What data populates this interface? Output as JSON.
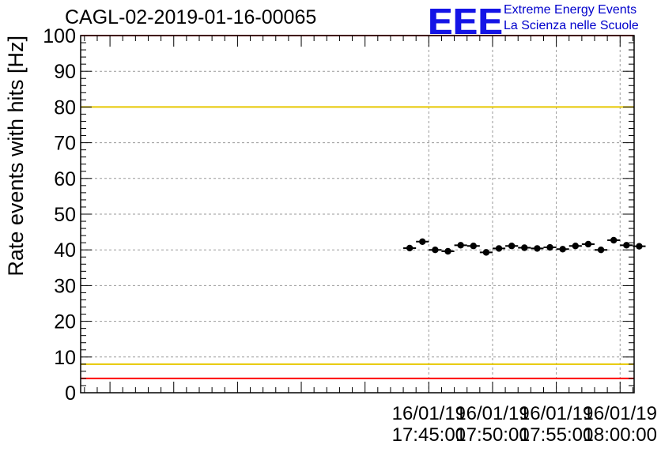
{
  "title": "CAGL-02-2019-01-16-00065",
  "logo": {
    "mark": "EEE",
    "line1": "Extreme Energy Events",
    "line2": "La Scienza nelle Scuole"
  },
  "chart_data": {
    "type": "scatter",
    "ylabel": "Rate events with hits [Hz]",
    "xlabel": "",
    "ylim": [
      0,
      100
    ],
    "yticks": [
      0,
      10,
      20,
      30,
      40,
      50,
      60,
      70,
      80,
      90,
      100
    ],
    "xlim_minutes": [
      17.7,
      61.1
    ],
    "x_ticks": [
      {
        "date": "16/01/19",
        "time": "17:45:00",
        "minute": 45
      },
      {
        "date": "16/01/19",
        "time": "17:50:00",
        "minute": 50
      },
      {
        "date": "16/01/19",
        "time": "17:55:00",
        "minute": 55
      },
      {
        "date": "16/01/19",
        "time": "18:00:00",
        "minute": 60
      }
    ],
    "grid": true,
    "bin_width_minutes": 1.0,
    "points": [
      {
        "x": "17:43:30",
        "y": 40.5
      },
      {
        "x": "17:44:30",
        "y": 42.3
      },
      {
        "x": "17:45:30",
        "y": 40.0
      },
      {
        "x": "17:46:30",
        "y": 39.6
      },
      {
        "x": "17:47:30",
        "y": 41.3
      },
      {
        "x": "17:48:30",
        "y": 41.1
      },
      {
        "x": "17:49:30",
        "y": 39.3
      },
      {
        "x": "17:50:30",
        "y": 40.4
      },
      {
        "x": "17:51:30",
        "y": 41.1
      },
      {
        "x": "17:52:30",
        "y": 40.6
      },
      {
        "x": "17:53:30",
        "y": 40.4
      },
      {
        "x": "17:54:30",
        "y": 40.7
      },
      {
        "x": "17:55:30",
        "y": 40.2
      },
      {
        "x": "17:56:30",
        "y": 41.1
      },
      {
        "x": "17:57:30",
        "y": 41.6
      },
      {
        "x": "17:58:30",
        "y": 40.0
      },
      {
        "x": "17:59:30",
        "y": 42.7
      },
      {
        "x": "18:00:30",
        "y": 41.3
      },
      {
        "x": "18:01:30",
        "y": 41.0
      }
    ],
    "reference_lines": [
      {
        "y": 80,
        "color": "#e6c800"
      },
      {
        "y": 8,
        "color": "#e6c800"
      },
      {
        "y": 4,
        "color": "#ff0000"
      },
      {
        "y": 100,
        "color": "#ff0000"
      }
    ]
  },
  "colors": {
    "marker": "#000000",
    "grid": "#999999",
    "logo": "#1414e6"
  }
}
